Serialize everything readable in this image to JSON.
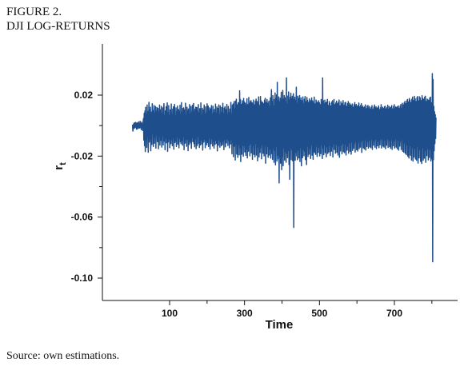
{
  "figure": {
    "number_label": "FIGURE 2.",
    "title": "DJI LOG-RETURNS",
    "source": "Source:  own estimations."
  },
  "chart_data": {
    "type": "line",
    "title": "DJI LOG-RETURNS",
    "xlabel": "Time",
    "ylabel": "r_t",
    "ylabel_main": "r",
    "ylabel_sub": "t",
    "xlim": [
      0,
      860
    ],
    "ylim": [
      -0.115,
      0.035
    ],
    "x_ticks": [
      100,
      300,
      500,
      700
    ],
    "x_tick_labels": [
      "100",
      "300",
      "500",
      "700"
    ],
    "y_ticks": [
      0.02,
      -0.02,
      -0.06,
      -0.1
    ],
    "y_tick_labels": [
      "0.02",
      "-0.02",
      "-0.06",
      "-0.10"
    ],
    "grid": false,
    "line_color": "#1f4e8c",
    "series": [
      {
        "x_start": 1,
        "x_end": 811,
        "values": [
          0.0006,
          -0.0036,
          -0.0012,
          0.0011,
          -0.0019,
          0.0017,
          -0.0005,
          -0.0014,
          0.0021,
          -0.0008,
          0.0012,
          -0.0024,
          0.0019,
          -0.0003,
          -0.0021,
          0.0016,
          -0.0011,
          0.0025,
          -0.0017,
          0.0004,
          -0.0015,
          0.0028,
          -0.0009,
          0.0013,
          -0.0027,
          0.0022,
          -0.0013,
          0.0008,
          -0.0032,
          0.0018,
          0.0046,
          -0.0095,
          0.0081,
          -0.0132,
          0.0095,
          -0.0171,
          0.012,
          -0.0091,
          0.0075,
          -0.0143,
          0.0135,
          -0.0066,
          0.0092,
          -0.0175,
          0.0052,
          0.0153,
          -0.0108,
          0.0104,
          -0.0088,
          0.0121,
          -0.0165,
          0.0071,
          0.0087,
          -0.0124,
          0.0144,
          -0.0052,
          0.0098,
          -0.0137,
          0.0063,
          0.0132,
          -0.0116,
          0.0081,
          -0.0075,
          0.0125,
          -0.0148,
          0.0094,
          -0.0058,
          0.0118,
          -0.0106,
          0.0071,
          0.0113,
          -0.0152,
          0.0088,
          -0.0069,
          0.0135,
          -0.0128,
          0.0054,
          0.0104,
          -0.0097,
          0.0126,
          -0.0141,
          0.0078,
          -0.0063,
          0.0116,
          -0.0127,
          0.0089,
          0.0144,
          -0.0102,
          0.0068,
          -0.0158,
          0.0097,
          -0.0081,
          0.0124,
          -0.0113,
          0.0058,
          0.0149,
          -0.0169,
          0.0086,
          -0.0107,
          0.0131,
          -0.0088,
          0.0067,
          -0.0145,
          0.0103,
          0.0092,
          -0.0119,
          0.0142,
          -0.0093,
          0.0071,
          -0.0132,
          0.0108,
          -0.0079,
          0.0123,
          -0.0155,
          0.0084,
          0.0139,
          -0.0111,
          0.0064,
          -0.0099,
          0.0116,
          -0.0137,
          0.0091,
          -0.0074,
          0.0128,
          -0.0122,
          0.0079,
          0.0106,
          -0.0146,
          0.0094,
          -0.0083,
          0.0134,
          -0.0107,
          0.0071,
          -0.0119,
          0.0151,
          -0.0096,
          0.0087,
          -0.0128,
          0.0112,
          -0.0069,
          0.0117,
          -0.0158,
          0.0076,
          0.0103,
          -0.0115,
          0.0147,
          -0.0091,
          0.0068,
          -0.0136,
          0.0121,
          -0.0086,
          0.0097,
          -0.0164,
          0.0109,
          0.0085,
          -0.0124,
          0.0138,
          -0.0101,
          0.0074,
          -0.0113,
          0.0126,
          -0.0149,
          0.0089,
          -0.0077,
          0.0133,
          -0.0105,
          0.0062,
          0.0145,
          -0.0118,
          0.0092,
          -0.0139,
          0.0108,
          -0.0085,
          0.0121,
          -0.0152,
          0.0073,
          0.0119,
          -0.0131,
          0.0096,
          -0.0072,
          0.0138,
          -0.0117,
          0.0083,
          -0.0143,
          0.0111,
          0.0076,
          -0.0127,
          0.0149,
          -0.0094,
          0.0067,
          -0.0121,
          0.0114,
          -0.0161,
          0.0088,
          0.0102,
          -0.0108,
          0.0135,
          -0.0089,
          0.0072,
          -0.0145,
          0.0123,
          -0.0099,
          0.0081,
          -0.0126,
          0.0143,
          -0.0112,
          0.0066,
          0.0128,
          -0.0137,
          0.0095,
          -0.0078,
          0.0117,
          -0.0154,
          0.0091,
          0.0109,
          -0.0119,
          0.0131,
          -0.0086,
          0.0074,
          -0.0134,
          0.0127,
          -0.0103,
          0.0085,
          -0.0148,
          0.0106,
          0.0093,
          -0.0123,
          0.0141,
          -0.0097,
          0.0079,
          -0.0117,
          0.0122,
          -0.0166,
          0.0087,
          0.0112,
          -0.0129,
          0.0136,
          -0.0092,
          0.0069,
          -0.0142,
          0.0129,
          -0.0107,
          0.0086,
          -0.0133,
          0.0118,
          0.0082,
          -0.0125,
          0.0146,
          -0.0102,
          0.0078,
          -0.0158,
          0.0115,
          -0.0091,
          0.0124,
          -0.0139,
          0.0097,
          0.0105,
          -0.0114,
          0.0139,
          -0.0087,
          0.0071,
          -0.0131,
          0.0126,
          -0.0098,
          0.0084,
          -0.0146,
          0.0108,
          0.0095,
          -0.0121,
          0.0152,
          -0.0094,
          0.0073,
          -0.0185,
          0.0133,
          -0.0112,
          0.0142,
          -0.0204,
          0.0118,
          0.0158,
          -0.0135,
          0.0109,
          -0.0226,
          0.0161,
          -0.0118,
          0.0173,
          -0.0187,
          0.0125,
          0.0135,
          -0.0209,
          0.0148,
          -0.0124,
          0.0151,
          -0.0192,
          0.0228,
          -0.0143,
          0.0171,
          -0.0236,
          0.0139,
          0.0116,
          -0.0188,
          0.0163,
          -0.0128,
          0.0145,
          -0.0201,
          0.0178,
          -0.0132,
          0.0155,
          -0.0173,
          0.0121,
          0.0147,
          -0.0195,
          0.0132,
          -0.0154,
          0.0176,
          -0.0212,
          0.0138,
          0.0119,
          -0.0168,
          0.0184,
          -0.0126,
          0.0142,
          -0.0198,
          0.0157,
          -0.0118,
          0.0164,
          -0.0179,
          0.0127,
          0.0151,
          -0.0222,
          0.0143,
          -0.0131,
          0.0168,
          -0.0189,
          0.0122,
          0.0136,
          -0.0205,
          0.0159,
          -0.0117,
          0.0174,
          -0.0193,
          0.0129,
          0.0158,
          -0.0231,
          0.0146,
          -0.0139,
          0.0188,
          -0.0206,
          0.0131,
          0.0112,
          -0.0177,
          0.0191,
          -0.0144,
          0.0162,
          -0.0218,
          0.0149,
          -0.0125,
          0.0153,
          -0.0182,
          0.0128,
          0.0143,
          -0.0199,
          0.0167,
          -0.0133,
          0.0179,
          -0.0247,
          0.0152,
          0.0124,
          -0.0186,
          0.0171,
          -0.0137,
          0.0146,
          -0.0208,
          0.0134,
          0.0161,
          -0.0193,
          0.0125,
          -0.0154,
          0.0182,
          -0.0213,
          0.0139,
          0.0236,
          -0.0184,
          0.0158,
          -0.0222,
          0.0197,
          -0.0149,
          0.0128,
          -0.0241,
          0.0171,
          -0.0162,
          0.0214,
          -0.0258,
          0.0177,
          -0.0135,
          0.0201,
          -0.0233,
          0.0284,
          -0.0194,
          0.0163,
          -0.0218,
          0.0188,
          -0.0376,
          0.0155,
          -0.0206,
          0.0179,
          -0.0247,
          0.0142,
          0.0219,
          -0.0289,
          0.0168,
          -0.0203,
          0.0231,
          -0.0263,
          0.0174,
          -0.0148,
          0.0197,
          -0.0227,
          0.0183,
          -0.0171,
          0.0156,
          -0.0241,
          0.0313,
          -0.0182,
          0.0139,
          -0.0211,
          0.0194,
          -0.0163,
          0.0221,
          -0.0255,
          0.0168,
          -0.0352,
          0.0186,
          -0.0145,
          0.0212,
          -0.0224,
          0.0176,
          -0.0157,
          0.0193,
          -0.0231,
          0.0159,
          0.0209,
          -0.0668,
          0.0171,
          -0.0149,
          0.0186,
          -0.0227,
          0.0164,
          -0.0175,
          0.0252,
          -0.0199,
          0.0146,
          -0.0224,
          0.0193,
          -0.0161,
          0.0178,
          -0.0212,
          0.0151,
          0.0197,
          -0.0236,
          0.0167,
          -0.0143,
          0.0182,
          -0.0264,
          0.0149,
          0.0163,
          -0.0211,
          0.0188,
          -0.0158,
          0.0144,
          -0.0198,
          0.0173,
          -0.0168,
          0.0191,
          -0.0223,
          0.0145,
          0.0157,
          -0.0256,
          0.0184,
          -0.0136,
          0.0166,
          -0.0203,
          0.0151,
          0.0129,
          -0.0187,
          0.0175,
          -0.0149,
          0.0158,
          -0.0216,
          0.0164,
          -0.0127,
          0.0181,
          -0.0194,
          0.0137,
          0.0162,
          -0.0221,
          0.0149,
          -0.0168,
          0.0187,
          -0.0177,
          0.0133,
          0.0142,
          -0.0189,
          0.0168,
          -0.0134,
          0.0156,
          -0.0203,
          0.0149,
          0.0121,
          -0.0176,
          0.0163,
          -0.0142,
          0.0151,
          -0.0199,
          0.0138,
          0.0132,
          -0.0184,
          0.0171,
          -0.0124,
          0.0153,
          -0.0216,
          0.0313,
          -0.0147,
          0.0163,
          -0.0191,
          0.0142,
          -0.0126,
          0.0167,
          -0.0178,
          0.0121,
          0.0149,
          -0.0205,
          0.0155,
          -0.0138,
          0.0172,
          -0.0183,
          0.0132,
          0.0119,
          -0.0173,
          0.0158,
          -0.0131,
          0.0146,
          -0.0197,
          0.0127,
          0.0128,
          -0.0168,
          0.0154,
          -0.0139,
          0.0163,
          -0.0206,
          0.0141,
          -0.0118,
          0.0171,
          -0.0157,
          0.0126,
          0.0137,
          -0.0182,
          0.0148,
          -0.0124,
          0.0161,
          -0.0176,
          0.0119,
          0.0143,
          -0.0193,
          0.0152,
          -0.0133,
          0.0168,
          -0.0208,
          0.0129,
          0.0111,
          -0.0166,
          0.0157,
          -0.0127,
          0.0139,
          -0.0185,
          0.0146,
          -0.0115,
          0.0164,
          -0.0171,
          0.0122,
          0.0132,
          -0.0178,
          0.0149,
          -0.0121,
          0.0153,
          -0.0193,
          0.0126,
          0.0117,
          -0.0161,
          0.0144,
          -0.0135,
          0.0158,
          -0.0181,
          0.0134,
          -0.0112,
          0.0147,
          -0.0169,
          0.0118,
          0.0136,
          -0.0188,
          0.0128,
          -0.0107,
          0.0142,
          -0.0163,
          0.0121,
          0.0114,
          -0.0149,
          0.0137,
          -0.0118,
          0.0151,
          -0.0174,
          0.0129,
          -0.0103,
          0.0139,
          -0.0158,
          0.0112,
          0.0126,
          -0.0167,
          0.0131,
          -0.0108,
          0.0148,
          -0.0152,
          0.0107,
          0.0122,
          -0.0141,
          0.0133,
          -0.0101,
          0.0144,
          -0.0176,
          0.0118,
          -0.0097,
          0.0128,
          -0.0146,
          0.0109,
          0.0117,
          -0.0153,
          0.0124,
          -0.0092,
          0.0136,
          -0.0161,
          0.0103,
          0.0111,
          -0.0137,
          0.0127,
          -0.0104,
          0.0132,
          -0.0148,
          0.0114,
          -0.0094,
          0.0125,
          -0.0139,
          0.0096,
          0.0108,
          -0.0145,
          0.0119,
          -0.0089,
          0.0131,
          -0.0156,
          0.0101,
          0.0106,
          -0.0128,
          0.0121,
          -0.0098,
          0.0135,
          -0.0142,
          0.0117,
          -0.0087,
          0.0124,
          -0.0151,
          0.0094,
          0.0113,
          -0.0133,
          0.0118,
          -0.0102,
          0.0129,
          -0.0145,
          0.0097,
          0.0105,
          -0.0126,
          0.0116,
          -0.0091,
          0.0138,
          -0.0147,
          0.0108,
          -0.0085,
          0.0121,
          -0.0135,
          0.0099,
          0.0112,
          -0.0141,
          0.0123,
          -0.0094,
          0.0127,
          -0.0152,
          0.0103,
          0.0109,
          -0.0129,
          0.0119,
          -0.0088,
          0.0134,
          -0.0144,
          0.0106,
          -0.0097,
          0.0125,
          -0.0138,
          0.0102,
          0.0115,
          -0.0149,
          0.0121,
          -0.0093,
          0.0131,
          -0.0156,
          0.0109,
          0.0104,
          -0.0132,
          0.0126,
          -0.0099,
          0.0137,
          -0.0147,
          0.0111,
          -0.0086,
          0.0123,
          -0.0141,
          0.0104,
          0.0118,
          -0.0153,
          0.0124,
          -0.0095,
          0.0129,
          -0.0161,
          0.0113,
          0.0107,
          -0.0135,
          0.0127,
          -0.0102,
          0.0139,
          -0.0157,
          0.0112,
          -0.0091,
          0.0146,
          -0.0168,
          0.0121,
          0.0134,
          -0.0175,
          0.0148,
          -0.0113,
          0.0159,
          -0.0182,
          0.0126,
          0.0143,
          -0.0191,
          0.0162,
          -0.0125,
          0.0171,
          -0.0201,
          0.0139,
          0.0154,
          -0.0213,
          0.0178,
          -0.0132,
          0.0167,
          -0.0194,
          0.0151,
          0.0148,
          -0.0226,
          0.0173,
          -0.0141,
          0.0187,
          -0.0233,
          0.0164,
          0.0156,
          -0.0207,
          0.0192,
          -0.0149,
          0.0176,
          -0.0219,
          0.0158,
          0.0139,
          -0.0228,
          0.0183,
          -0.0136,
          0.0191,
          -0.0246,
          0.0162,
          0.0151,
          -0.0212,
          0.0189,
          -0.0158,
          0.0181,
          -0.0235,
          0.0153,
          0.0164,
          -0.0249,
          0.0196,
          -0.0143,
          0.0178,
          -0.0227,
          0.0172,
          0.0148,
          -0.0214,
          0.0186,
          -0.0162,
          0.0193,
          -0.0241,
          0.0158,
          0.0136,
          -0.0197,
          0.0174,
          -0.0151,
          0.0168,
          -0.0225,
          0.0166,
          0.0124,
          -0.0209,
          0.0181,
          -0.0155,
          0.0187,
          -0.0232,
          0.0149,
          0.0141,
          -0.0218,
          0.0341,
          -0.0893,
          0.0302,
          -0.0224,
          0.0126,
          -0.0165,
          0.0091,
          -0.0118,
          0.0072,
          -0.0084,
          0.0053
        ]
      }
    ]
  }
}
